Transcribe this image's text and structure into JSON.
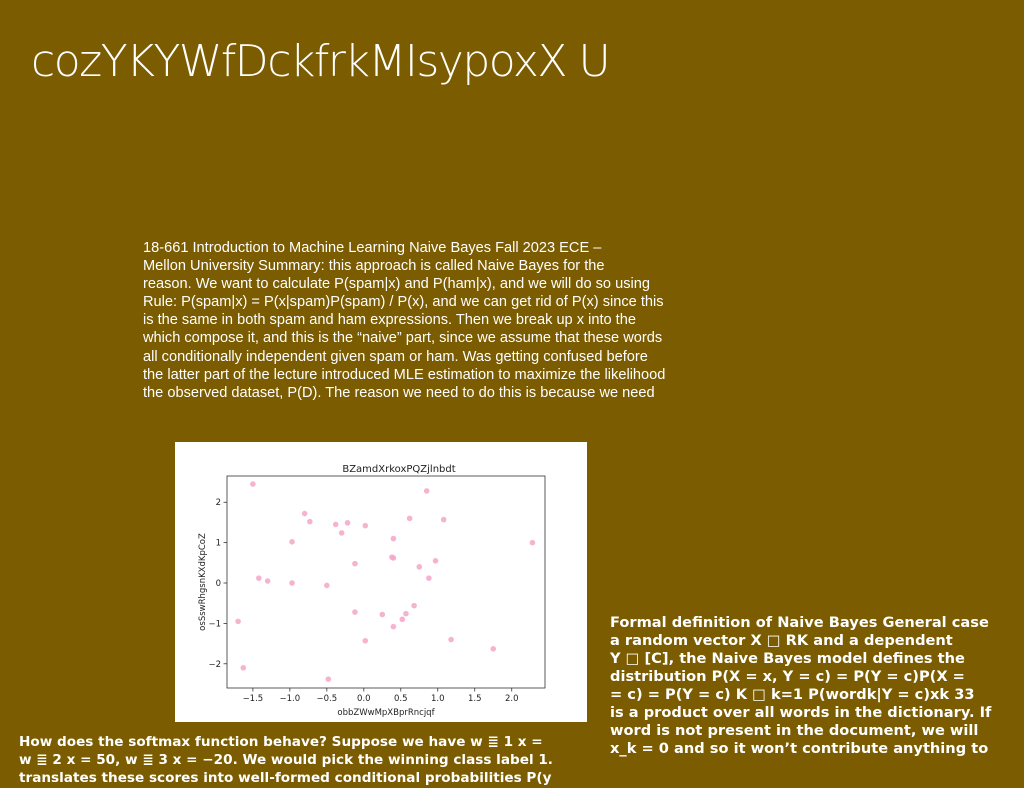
{
  "title": "cozYKYWfDckfrkMIsypoxX U",
  "summary_lines": [
    "18-661 Introduction to Machine Learning Naive Bayes Fall 2023 ECE –",
    "Mellon University Summary: this approach is called Naive Bayes for the",
    "reason. We want to calculate P(spam|x) and P(ham|x), and we will do so using",
    "Rule: P(spam|x) = P(x|spam)P(spam) / P(x), and we can get rid of P(x) since this",
    "is the same in both spam and ham expressions. Then we break up x into the",
    "which compose it, and this is the “naive” part, since we assume that these words",
    "all conditionally independent given spam or ham. Was getting confused before",
    "the latter part of the lecture introduced MLE estimation to maximize the likelihood",
    "the observed dataset, P(D). The reason we need to do this is because we need"
  ],
  "right_lines": [
    "Formal definition of Naive Bayes General case",
    "a random vector X □ RK and a dependent",
    "Y □ [C], the Naive Bayes model defines the",
    "distribution P(X = x, Y = c) = P(Y = c)P(X =",
    "= c) = P(Y = c) K □ k=1 P(wordk|Y = c)xk 33",
    "is a product over all words in the dictionary. If",
    "word is not present in the document, we will",
    "x_k = 0 and so it won’t contribute anything to"
  ],
  "bottom_lines": [
    "How does the softmax function behave? Suppose we have w ≣ 1 x =",
    "w ≣ 2 x = 50, w ≣ 3 x = −20. We would pick the winning class label 1.",
    "translates these scores into well-formed conditional probabilities P(y"
  ],
  "chart_data": {
    "type": "scatter",
    "title": "BZamdXrkoxPQZjlnbdt",
    "xlabel": "obbZWwMpXBprRncjqf",
    "ylabel": "osSswRhgsnKXdKpCoZ",
    "xlim": [
      -1.85,
      2.45
    ],
    "ylim": [
      -2.6,
      2.65
    ],
    "xticks": [
      -1.5,
      -1.0,
      -0.5,
      0.0,
      0.5,
      1.0,
      1.5,
      2.0
    ],
    "xtick_labels": [
      "−1.5",
      "−1.0",
      "−0.5",
      "0.0",
      "0.5",
      "1.0",
      "1.5",
      "2.0"
    ],
    "yticks": [
      -2,
      -1,
      0,
      1,
      2
    ],
    "ytick_labels": [
      "−2",
      "−1",
      "0",
      "1",
      "2"
    ],
    "grid": false,
    "marker_color": "#f4a6c8",
    "points": [
      {
        "x": -1.5,
        "y": 2.45
      },
      {
        "x": -1.7,
        "y": -0.95
      },
      {
        "x": -1.63,
        "y": -2.1
      },
      {
        "x": -1.42,
        "y": 0.12
      },
      {
        "x": -1.3,
        "y": 0.05
      },
      {
        "x": -0.97,
        "y": 1.02
      },
      {
        "x": -0.97,
        "y": 0.0
      },
      {
        "x": -0.8,
        "y": 1.72
      },
      {
        "x": -0.73,
        "y": 1.52
      },
      {
        "x": -0.5,
        "y": -0.06
      },
      {
        "x": -0.48,
        "y": -2.38
      },
      {
        "x": -0.38,
        "y": 1.45
      },
      {
        "x": -0.3,
        "y": 1.24
      },
      {
        "x": -0.22,
        "y": 1.49
      },
      {
        "x": -0.12,
        "y": 0.48
      },
      {
        "x": -0.12,
        "y": -0.72
      },
      {
        "x": 0.02,
        "y": 1.42
      },
      {
        "x": 0.02,
        "y": -1.43
      },
      {
        "x": 0.25,
        "y": -0.78
      },
      {
        "x": 0.38,
        "y": 0.64
      },
      {
        "x": 0.4,
        "y": 0.62
      },
      {
        "x": 0.4,
        "y": 1.1
      },
      {
        "x": 0.4,
        "y": -1.08
      },
      {
        "x": 0.52,
        "y": -0.9
      },
      {
        "x": 0.57,
        "y": -0.76
      },
      {
        "x": 0.62,
        "y": 1.6
      },
      {
        "x": 0.68,
        "y": -0.56
      },
      {
        "x": 0.75,
        "y": 0.4
      },
      {
        "x": 0.85,
        "y": 2.28
      },
      {
        "x": 0.88,
        "y": 0.12
      },
      {
        "x": 0.97,
        "y": 0.55
      },
      {
        "x": 1.08,
        "y": 1.57
      },
      {
        "x": 1.18,
        "y": -1.4
      },
      {
        "x": 1.75,
        "y": -1.63
      },
      {
        "x": 2.28,
        "y": 1.0
      }
    ]
  }
}
